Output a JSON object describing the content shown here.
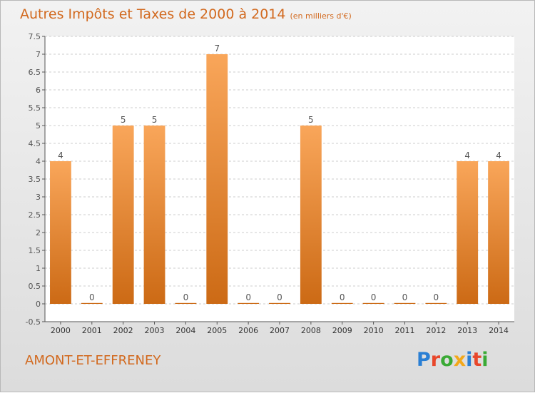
{
  "header": {
    "title": "Autres Impôts et Taxes de 2000 à 2014",
    "unit": "(en milliers d'€)"
  },
  "footer": {
    "commune": "AMONT-ET-EFFRENEY",
    "logo_letters": [
      "P",
      "r",
      "o",
      "x",
      "i",
      "t",
      "i"
    ]
  },
  "colors": {
    "title": "#d2691e",
    "bar_top": "#f9a65a",
    "bar_bottom": "#cc6a15",
    "grid": "#cccccc"
  },
  "chart_data": {
    "type": "bar",
    "categories": [
      "2000",
      "2001",
      "2002",
      "2003",
      "2004",
      "2005",
      "2006",
      "2007",
      "2008",
      "2009",
      "2010",
      "2011",
      "2012",
      "2013",
      "2014"
    ],
    "values": [
      4,
      0,
      5,
      5,
      0,
      7,
      0,
      0,
      5,
      0,
      0,
      0,
      0,
      4,
      4
    ],
    "data_labels": [
      "4",
      "0",
      "5",
      "5",
      "0",
      "7",
      "0",
      "0",
      "5",
      "0",
      "0",
      "0",
      "0",
      "4",
      "4"
    ],
    "ylim": [
      -0.5,
      7.5
    ],
    "yticks": [
      "-0.5",
      "0",
      "0.5",
      "1",
      "1.5",
      "2",
      "2.5",
      "3",
      "3.5",
      "4",
      "4.5",
      "5",
      "5.5",
      "6",
      "6.5",
      "7",
      "7.5"
    ],
    "grid": true,
    "legend": "none"
  }
}
